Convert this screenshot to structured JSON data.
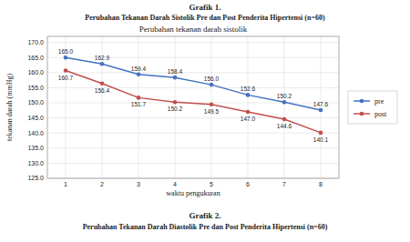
{
  "title": "Grafik 1.",
  "subtitle": "Perubahan Tekanan Darah Sistolik Pre dan Post Penderita Hipertensi (n=60)",
  "chart_data": {
    "type": "line",
    "title": "Perubahan tekanan darah sistolik",
    "annotations": [
      "Grafik 2.",
      "Perubahan Tekanan Darah Diastolik Pre dan Post Penderita Hipertensi (n=60)"
    ],
    "x_label": "waktu pengukuran",
    "y_label": "tekanan darah (mmHg)",
    "x": [
      1,
      2,
      3,
      4,
      5,
      6,
      7,
      8
    ],
    "xlim": [
      0.5,
      8.5
    ],
    "xticks": [
      1,
      2,
      3,
      4,
      5,
      6,
      7,
      8
    ],
    "ylim": [
      125.0,
      172.0
    ],
    "yticks": [
      {
        "value": 125.0,
        "label": "125.0"
      },
      {
        "value": 130.0,
        "label": "130.0"
      },
      {
        "value": 135.0,
        "label": "135.0"
      },
      {
        "value": 140.0,
        "label": "140.0"
      },
      {
        "value": 145.0,
        "label": "145.0"
      },
      {
        "value": 150.0,
        "label": "150.0"
      },
      {
        "value": 155.0,
        "label": "155.0"
      },
      {
        "value": 160.0,
        "label": "160.0"
      },
      {
        "value": 165.0,
        "label": "165.0"
      },
      {
        "value": 170.0,
        "label": "170.0"
      }
    ],
    "series": [
      {
        "name": "pre",
        "color": "#4472C4",
        "marker": "circle",
        "values": [
          165.0,
          162.9,
          159.4,
          158.4,
          156.0,
          152.6,
          150.2,
          147.6
        ],
        "value_labels": [
          "165.0",
          "162.9",
          "159.4",
          "158.4",
          "156.0",
          "152.6",
          "150.2",
          "147.6"
        ]
      },
      {
        "name": "post",
        "color": "#C0504D",
        "marker": "circle",
        "values": [
          160.7,
          156.4,
          151.7,
          150.2,
          149.5,
          147.0,
          144.6,
          140.1
        ],
        "value_labels": [
          "160.7",
          "156.4",
          "151.7",
          "150.2",
          "149.5",
          "147.0",
          "144.6",
          "140.1"
        ]
      }
    ],
    "data_labels": true,
    "grid": true,
    "legend": "right"
  }
}
